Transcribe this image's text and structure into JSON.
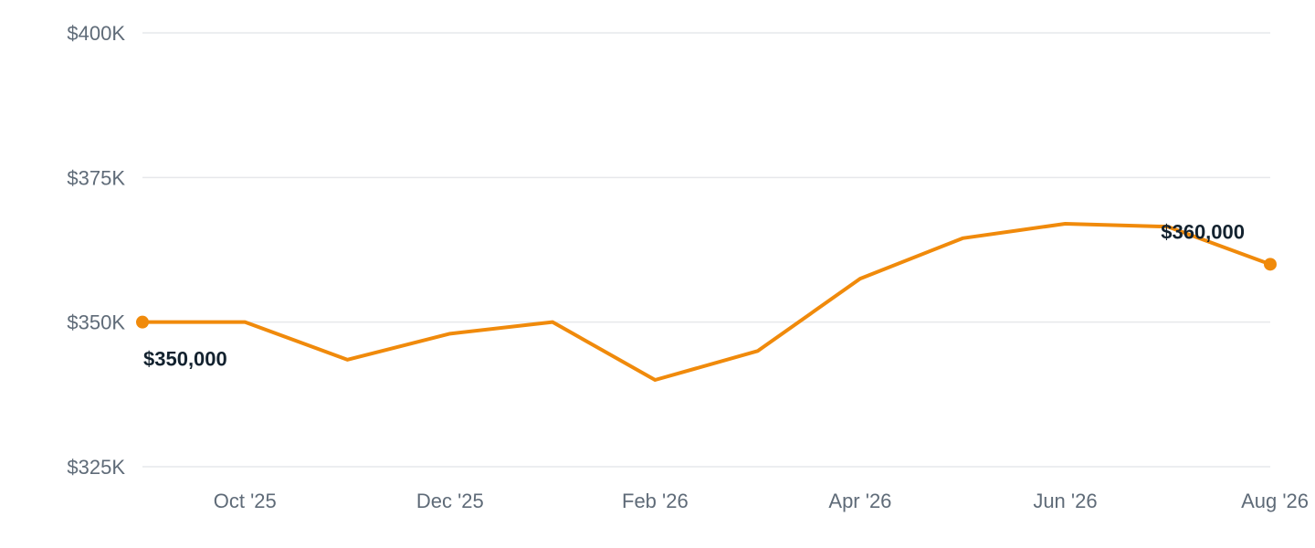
{
  "chart_data": {
    "type": "line",
    "title": "",
    "xlabel": "",
    "ylabel": "",
    "x": [
      "2025-09",
      "2025-10",
      "2025-11",
      "2025-12",
      "2026-01",
      "2026-02",
      "2026-03",
      "2026-04",
      "2026-05",
      "2026-06",
      "2026-07",
      "2026-08"
    ],
    "x_tick_labels": [
      "Oct '25",
      "Dec '25",
      "Feb '26",
      "Apr '26",
      "Jun '26",
      "Aug '26"
    ],
    "x_tick_positions": [
      "2025-10",
      "2025-12",
      "2026-02",
      "2026-04",
      "2026-06",
      "2026-08"
    ],
    "y_ticks": [
      325000,
      350000,
      375000,
      400000
    ],
    "y_tick_labels": [
      "$325K",
      "$350K",
      "$375K",
      "$400K"
    ],
    "ylim": [
      325000,
      400000
    ],
    "grid": true,
    "series": [
      {
        "values": [
          350000,
          350000,
          343500,
          348000,
          350000,
          340000,
          345000,
          357500,
          364500,
          367000,
          366500,
          360000
        ]
      }
    ],
    "annotations": {
      "start_label": "$350,000",
      "end_label": "$360,000"
    },
    "colors": {
      "line": "#f08a0b",
      "grid": "#e6e8eb",
      "tick_text": "#5f6b78",
      "label_text": "#13222f"
    }
  }
}
